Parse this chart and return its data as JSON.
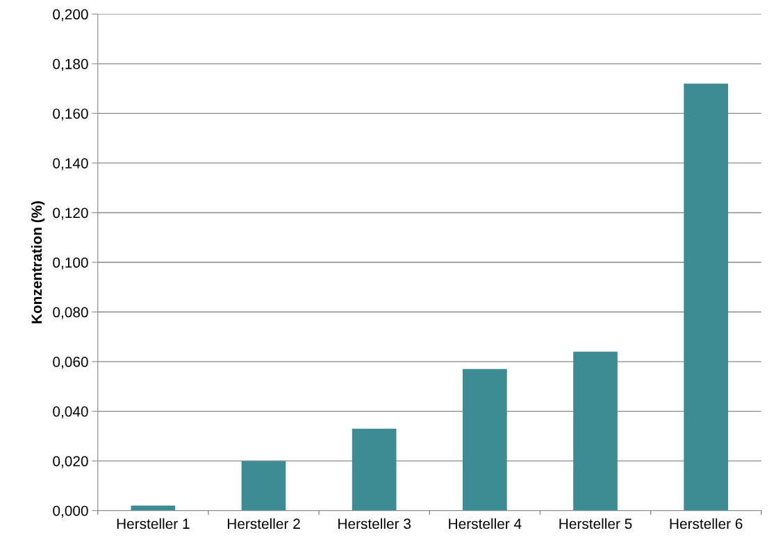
{
  "chart_data": {
    "type": "bar",
    "ylabel": "Konzentration (%)",
    "categories": [
      "Hersteller 1",
      "Hersteller 2",
      "Hersteller 3",
      "Hersteller 4",
      "Hersteller 5",
      "Hersteller 6"
    ],
    "values": [
      0.002,
      0.02,
      0.033,
      0.057,
      0.064,
      0.172
    ],
    "color": "#3d8c93",
    "ylim": [
      0,
      0.2
    ],
    "yticks": [
      {
        "value": 0,
        "label": "0,000"
      },
      {
        "value": 0.02,
        "label": "0,020"
      },
      {
        "value": 0.04,
        "label": "0,040"
      },
      {
        "value": 0.06,
        "label": "0,060"
      },
      {
        "value": 0.08,
        "label": "0,080"
      },
      {
        "value": 0.1,
        "label": "0,100"
      },
      {
        "value": 0.12,
        "label": "0,120"
      },
      {
        "value": 0.14,
        "label": "0,140"
      },
      {
        "value": 0.16,
        "label": "0,160"
      },
      {
        "value": 0.18,
        "label": "0,180"
      },
      {
        "value": 0.2,
        "label": "0,200"
      }
    ],
    "grid": "y"
  }
}
